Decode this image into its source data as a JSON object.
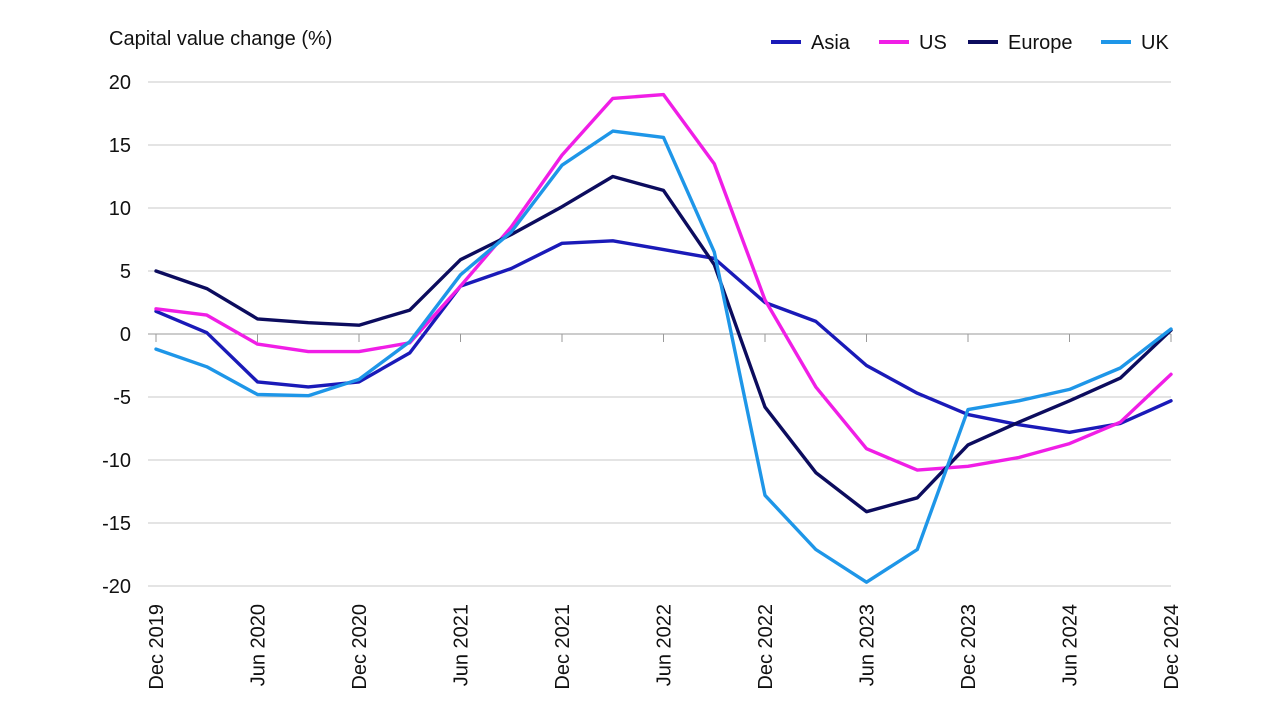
{
  "chart_data": {
    "type": "line",
    "ylabel": "Capital value change (%)",
    "xlabel": "",
    "ylim": [
      -20,
      20
    ],
    "yticks": [
      20,
      15,
      10,
      5,
      0,
      -5,
      -10,
      -15,
      -20
    ],
    "ytick_labels": [
      "20",
      "15",
      "10",
      "5",
      "0",
      "-5",
      "-10",
      "-15",
      "-20"
    ],
    "grid": true,
    "legend_position": "top-right",
    "x": [
      "Dec 2019",
      "Mar 2020",
      "Jun 2020",
      "Sep 2020",
      "Dec 2020",
      "Mar 2021",
      "Jun 2021",
      "Sep 2021",
      "Dec 2021",
      "Mar 2022",
      "Jun 2022",
      "Sep 2022",
      "Dec 2022",
      "Mar 2023",
      "Jun 2023",
      "Sep 2023",
      "Dec 2023",
      "Mar 2024",
      "Jun 2024",
      "Sep 2024",
      "Dec 2024"
    ],
    "x_tick_labels": [
      "Dec 2019",
      "Jun 2020",
      "Dec 2020",
      "Jun 2021",
      "Dec 2021",
      "Jun 2022",
      "Dec 2022",
      "Jun 2023",
      "Dec 2023",
      "Jun 2024",
      "Dec 2024"
    ],
    "series": [
      {
        "name": "Asia",
        "color": "#1a1ab8",
        "values": [
          1.8,
          0.1,
          -3.8,
          -4.2,
          -3.8,
          -1.5,
          3.8,
          5.2,
          7.2,
          7.4,
          6.7,
          6.0,
          2.5,
          1.0,
          -2.5,
          -4.7,
          -6.4,
          -7.2,
          -7.8,
          -7.1,
          -5.3
        ]
      },
      {
        "name": "US",
        "color": "#f01ee6",
        "values": [
          2.0,
          1.5,
          -0.8,
          -1.4,
          -1.4,
          -0.7,
          3.8,
          8.5,
          14.2,
          18.7,
          19.0,
          13.5,
          2.7,
          -4.2,
          -9.1,
          -10.8,
          -10.5,
          -9.8,
          -8.7,
          -7.0,
          -3.2
        ]
      },
      {
        "name": "Europe",
        "color": "#0c0c5e",
        "values": [
          5.0,
          3.6,
          1.2,
          0.9,
          0.7,
          1.9,
          5.9,
          7.9,
          10.1,
          12.5,
          11.4,
          5.5,
          -5.8,
          -11.0,
          -14.1,
          -13.0,
          -8.8,
          -7.0,
          -5.3,
          -3.5,
          0.3
        ]
      },
      {
        "name": "UK",
        "color": "#1e96e8",
        "values": [
          -1.2,
          -2.6,
          -4.8,
          -4.9,
          -3.6,
          -0.6,
          4.7,
          8.1,
          13.4,
          16.1,
          15.6,
          6.5,
          -12.8,
          -17.1,
          -19.7,
          -17.1,
          -6.0,
          -5.3,
          -4.4,
          -2.7,
          0.4
        ]
      }
    ]
  }
}
